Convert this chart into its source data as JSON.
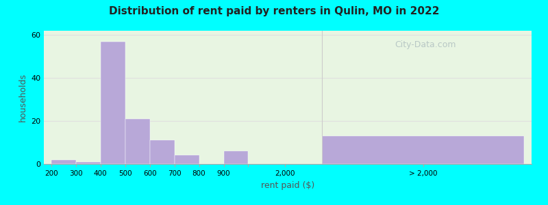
{
  "title": "Distribution of rent paid by renters in Qulin, MO in 2022",
  "xlabel": "rent paid ($)",
  "ylabel": "households",
  "background_color": "#00ffff",
  "plot_bg_color": "#e8f5e2",
  "bar_color": "#b8a8d8",
  "bar_edge_color": "#ffffff",
  "ylim": [
    0,
    62
  ],
  "yticks": [
    0,
    20,
    40,
    60
  ],
  "bars_left": [
    {
      "label": "200",
      "value": 2
    },
    {
      "label": "300",
      "value": 1
    },
    {
      "label": "400",
      "value": 57
    },
    {
      "label": "500",
      "value": 21
    },
    {
      "label": "600",
      "value": 11
    },
    {
      "label": "700",
      "value": 4
    },
    {
      "label": "800",
      "value": 0
    },
    {
      "label": "900",
      "value": 6
    }
  ],
  "bar_right": {
    "label": "> 2,000",
    "value": 13
  },
  "tick_2000_label": "2,000",
  "watermark": "City-Data.com",
  "grid_color": "#e0e0e0",
  "separator_color": "#cccccc"
}
